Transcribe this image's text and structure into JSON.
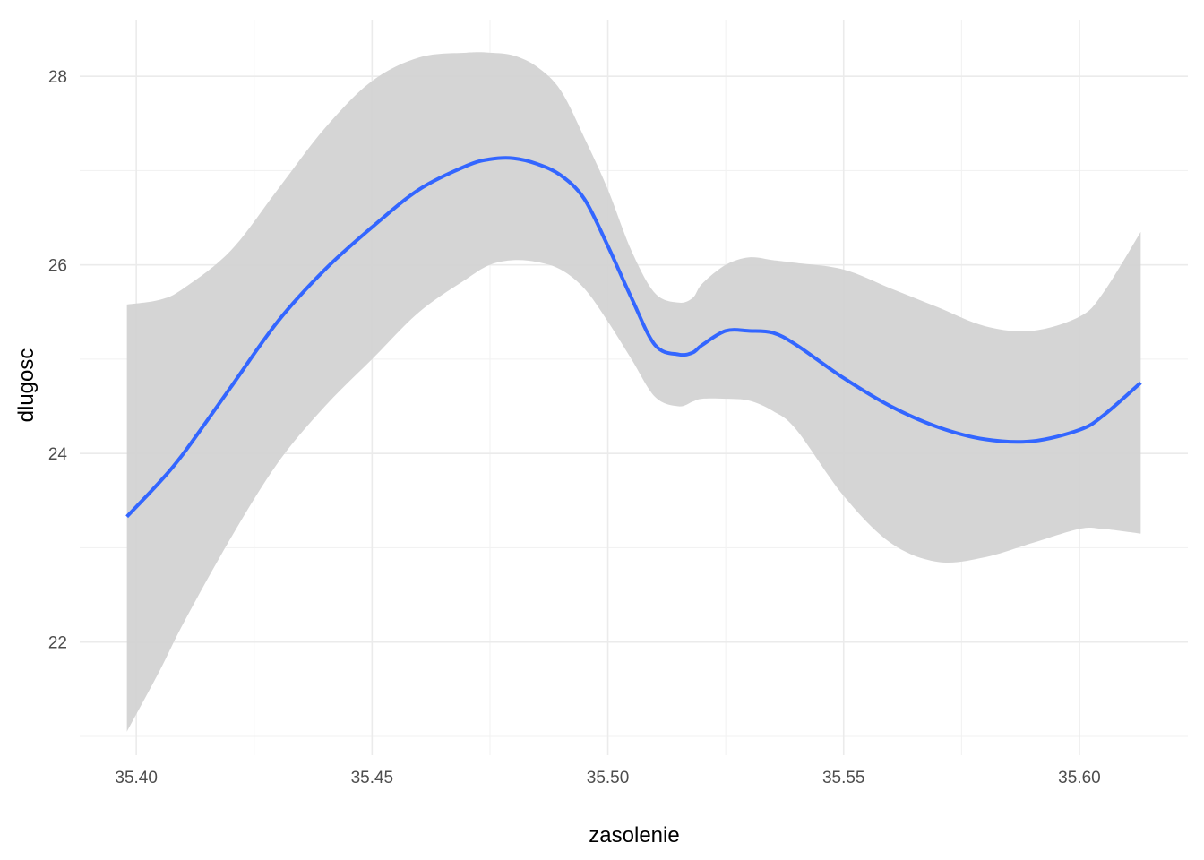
{
  "chart_data": {
    "type": "line",
    "title": "",
    "xlabel": "zasolenie",
    "ylabel": "dlugosc",
    "xlim": [
      35.388,
      35.623
    ],
    "ylim": [
      20.8,
      28.6
    ],
    "grid": true,
    "legend": "none",
    "x_ticks": [
      {
        "value": 35.4,
        "label": "35.40"
      },
      {
        "value": 35.45,
        "label": "35.45"
      },
      {
        "value": 35.5,
        "label": "35.50"
      },
      {
        "value": 35.55,
        "label": "35.55"
      },
      {
        "value": 35.6,
        "label": "35.60"
      }
    ],
    "y_ticks": [
      {
        "value": 22,
        "label": "22"
      },
      {
        "value": 24,
        "label": "24"
      },
      {
        "value": 26,
        "label": "26"
      },
      {
        "value": 28,
        "label": "28"
      }
    ],
    "x_minor": [
      35.425,
      35.475,
      35.525,
      35.575
    ],
    "y_minor": [
      21,
      23,
      25,
      27
    ],
    "series": [
      {
        "line_color": "#3366FF",
        "band_color": "#D3D3D3",
        "x": [
          35.398,
          35.405,
          35.41,
          35.42,
          35.43,
          35.44,
          35.45,
          35.46,
          35.47,
          35.475,
          35.48,
          35.485,
          35.49,
          35.495,
          35.5,
          35.505,
          35.51,
          35.515,
          35.518,
          35.52,
          35.525,
          35.53,
          35.535,
          35.54,
          35.55,
          35.56,
          35.57,
          35.58,
          35.59,
          35.6,
          35.605,
          35.613
        ],
        "y": [
          23.33,
          23.7,
          24.0,
          24.7,
          25.4,
          25.95,
          26.4,
          26.8,
          27.05,
          27.12,
          27.13,
          27.07,
          26.95,
          26.7,
          26.2,
          25.65,
          25.15,
          25.05,
          25.07,
          25.15,
          25.3,
          25.3,
          25.28,
          25.15,
          24.8,
          24.5,
          24.28,
          24.15,
          24.13,
          24.25,
          24.4,
          24.75
        ],
        "lower": [
          21.05,
          21.7,
          22.2,
          23.1,
          23.9,
          24.5,
          25.0,
          25.5,
          25.85,
          26.0,
          26.05,
          26.03,
          25.95,
          25.75,
          25.4,
          25.0,
          24.6,
          24.5,
          24.55,
          24.58,
          24.58,
          24.56,
          24.45,
          24.25,
          23.55,
          23.05,
          22.85,
          22.9,
          23.05,
          23.2,
          23.2,
          23.15
        ],
        "upper": [
          25.58,
          25.63,
          25.75,
          26.15,
          26.8,
          27.45,
          27.95,
          28.2,
          28.25,
          28.25,
          28.22,
          28.1,
          27.85,
          27.35,
          26.8,
          26.15,
          25.7,
          25.6,
          25.65,
          25.8,
          26.0,
          26.08,
          26.05,
          26.02,
          25.95,
          25.75,
          25.55,
          25.35,
          25.3,
          25.45,
          25.7,
          26.35
        ]
      }
    ]
  }
}
